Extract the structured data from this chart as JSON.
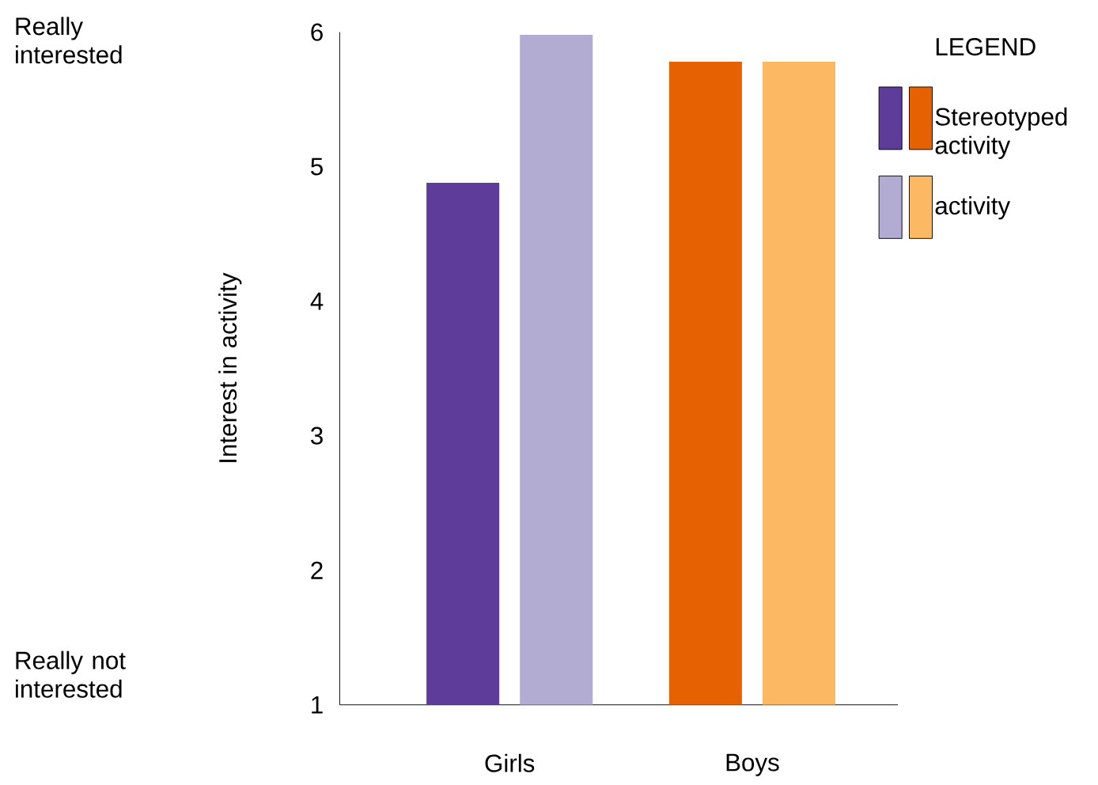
{
  "chart_data": {
    "type": "bar",
    "categories": [
      "Girls",
      "Boys"
    ],
    "ylabel": "Interest in activity",
    "ylim": [
      1,
      6
    ],
    "yticks": [
      1,
      2,
      3,
      4,
      5,
      6
    ],
    "legend": "top right",
    "legend_title": "LEGEND",
    "grid": false,
    "annotations": [
      "Really interested",
      "Really not interested"
    ],
    "series": [
      {
        "name": "Stereotyped activity",
        "colors": [
          "#5e3c99",
          "#e66101"
        ],
        "values": [
          4.88,
          5.78
        ]
      },
      {
        "name": "activity",
        "colors": [
          "#b2abd2",
          "#fdb863"
        ],
        "values": [
          5.98,
          5.78
        ]
      }
    ]
  }
}
